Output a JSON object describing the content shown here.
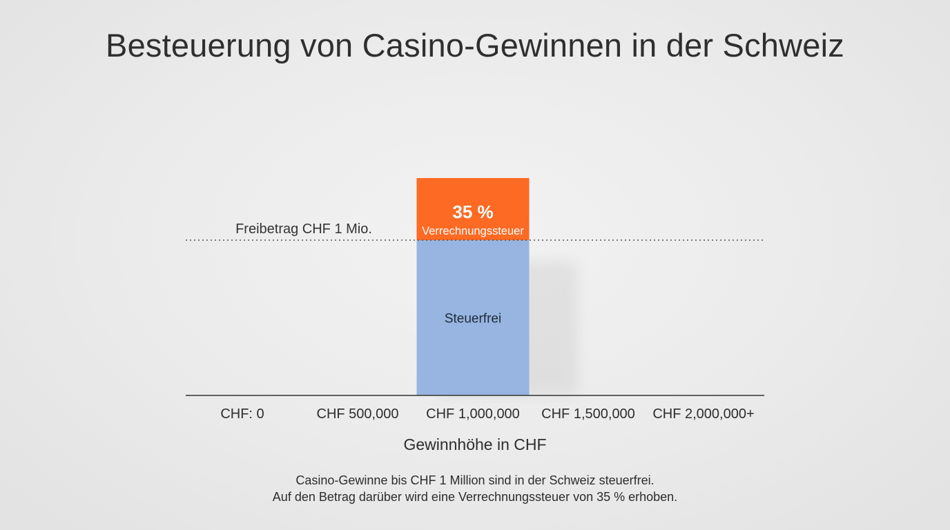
{
  "chart_data": {
    "type": "bar",
    "title": "Besteuerung von Casino-Gewinnen in der Schweiz",
    "xlabel": "Gewinnhöhe in CHF",
    "ylabel": "",
    "x_ticks": [
      {
        "label": "CHF: 0",
        "value": 0
      },
      {
        "label": "CHF 500,000",
        "value": 500000
      },
      {
        "label": "CHF 1,000,000",
        "value": 1000000
      },
      {
        "label": "CHF 1,500,000",
        "value": 1500000
      },
      {
        "label": "CHF 2,000,000+",
        "value": 2000000
      }
    ],
    "x_range": [
      0,
      2000000
    ],
    "bar": {
      "x": 1000000,
      "segments": [
        {
          "name": "Steuerfrei",
          "label": "Steuerfrei",
          "from": 0,
          "to": 1000000,
          "color": "#97b5e0"
        },
        {
          "name": "Verrechnungssteuer",
          "rate_label": "35 %",
          "label": "Verrechnungssteuer",
          "from": 1000000,
          "to": 1400000,
          "color": "#fc6a24"
        }
      ]
    },
    "y_range": [
      0,
      1400000
    ],
    "threshold": {
      "value": 1000000,
      "label": "Freibetrag CHF 1 Mio."
    },
    "grid": false,
    "legend": "none"
  },
  "caption": {
    "line1": "Casino-Gewinne bis CHF 1 Million sind in der Schweiz steuerfrei.",
    "line2": "Auf den Betrag darüber wird eine Verrechnungssteuer von 35 % erhoben."
  },
  "colors": {
    "axis": "#333333",
    "threshold_line": "#555555",
    "bar_text_dark": "#1f2a3a",
    "bar_text_light": "#ffffff"
  }
}
